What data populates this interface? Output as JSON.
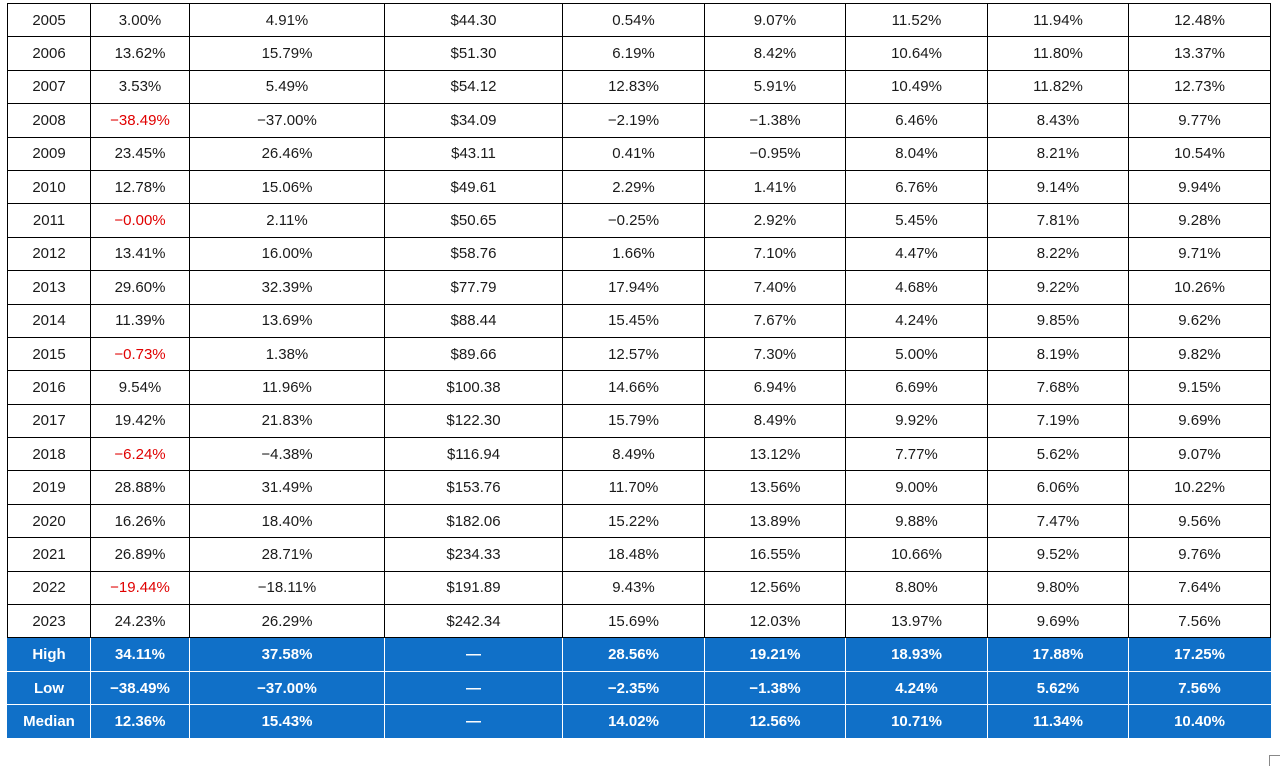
{
  "colors": {
    "negative_text": "#e00000",
    "summary_bg": "#1070c8",
    "summary_text": "#ffffff",
    "grid": "#000000"
  },
  "rows": [
    [
      "2005",
      "3.00%",
      "4.91%",
      "$44.30",
      "0.54%",
      "9.07%",
      "11.52%",
      "11.94%",
      "12.48%"
    ],
    [
      "2006",
      "13.62%",
      "15.79%",
      "$51.30",
      "6.19%",
      "8.42%",
      "10.64%",
      "11.80%",
      "13.37%"
    ],
    [
      "2007",
      "3.53%",
      "5.49%",
      "$54.12",
      "12.83%",
      "5.91%",
      "10.49%",
      "11.82%",
      "12.73%"
    ],
    [
      "2008",
      "−38.49%",
      "−37.00%",
      "$34.09",
      "−2.19%",
      "−1.38%",
      "6.46%",
      "8.43%",
      "9.77%"
    ],
    [
      "2009",
      "23.45%",
      "26.46%",
      "$43.11",
      "0.41%",
      "−0.95%",
      "8.04%",
      "8.21%",
      "10.54%"
    ],
    [
      "2010",
      "12.78%",
      "15.06%",
      "$49.61",
      "2.29%",
      "1.41%",
      "6.76%",
      "9.14%",
      "9.94%"
    ],
    [
      "2011",
      "−0.00%",
      "2.11%",
      "$50.65",
      "−0.25%",
      "2.92%",
      "5.45%",
      "7.81%",
      "9.28%"
    ],
    [
      "2012",
      "13.41%",
      "16.00%",
      "$58.76",
      "1.66%",
      "7.10%",
      "4.47%",
      "8.22%",
      "9.71%"
    ],
    [
      "2013",
      "29.60%",
      "32.39%",
      "$77.79",
      "17.94%",
      "7.40%",
      "4.68%",
      "9.22%",
      "10.26%"
    ],
    [
      "2014",
      "11.39%",
      "13.69%",
      "$88.44",
      "15.45%",
      "7.67%",
      "4.24%",
      "9.85%",
      "9.62%"
    ],
    [
      "2015",
      "−0.73%",
      "1.38%",
      "$89.66",
      "12.57%",
      "7.30%",
      "5.00%",
      "8.19%",
      "9.82%"
    ],
    [
      "2016",
      "9.54%",
      "11.96%",
      "$100.38",
      "14.66%",
      "6.94%",
      "6.69%",
      "7.68%",
      "9.15%"
    ],
    [
      "2017",
      "19.42%",
      "21.83%",
      "$122.30",
      "15.79%",
      "8.49%",
      "9.92%",
      "7.19%",
      "9.69%"
    ],
    [
      "2018",
      "−6.24%",
      "−4.38%",
      "$116.94",
      "8.49%",
      "13.12%",
      "7.77%",
      "5.62%",
      "9.07%"
    ],
    [
      "2019",
      "28.88%",
      "31.49%",
      "$153.76",
      "11.70%",
      "13.56%",
      "9.00%",
      "6.06%",
      "10.22%"
    ],
    [
      "2020",
      "16.26%",
      "18.40%",
      "$182.06",
      "15.22%",
      "13.89%",
      "9.88%",
      "7.47%",
      "9.56%"
    ],
    [
      "2021",
      "26.89%",
      "28.71%",
      "$234.33",
      "18.48%",
      "16.55%",
      "10.66%",
      "9.52%",
      "9.76%"
    ],
    [
      "2022",
      "−19.44%",
      "−18.11%",
      "$191.89",
      "9.43%",
      "12.56%",
      "8.80%",
      "9.80%",
      "7.64%"
    ],
    [
      "2023",
      "24.23%",
      "26.29%",
      "$242.34",
      "15.69%",
      "12.03%",
      "13.97%",
      "9.69%",
      "7.56%"
    ]
  ],
  "negative_cells": [
    {
      "row": 3,
      "col": 1
    },
    {
      "row": 6,
      "col": 1
    },
    {
      "row": 10,
      "col": 1
    },
    {
      "row": 13,
      "col": 1
    },
    {
      "row": 17,
      "col": 1
    }
  ],
  "summary": [
    [
      "High",
      "34.11%",
      "37.58%",
      "—",
      "28.56%",
      "19.21%",
      "18.93%",
      "17.88%",
      "17.25%"
    ],
    [
      "Low",
      "−38.49%",
      "−37.00%",
      "—",
      "−2.35%",
      "−1.38%",
      "4.24%",
      "5.62%",
      "7.56%"
    ],
    [
      "Median",
      "12.36%",
      "15.43%",
      "—",
      "14.02%",
      "12.56%",
      "10.71%",
      "11.34%",
      "10.40%"
    ]
  ]
}
